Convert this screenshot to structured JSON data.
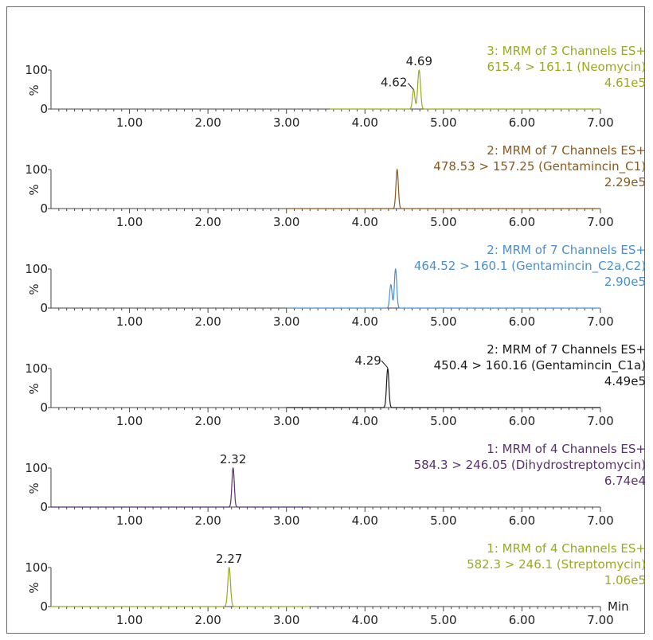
{
  "x_unit_label": "Min",
  "chart_data": [
    {
      "type": "line",
      "title_lines": [
        "3: MRM of 3 Channels ES+",
        "615.4 > 161.1 (Neomycin)",
        "4.61e5"
      ],
      "color": "#9aaa1f",
      "xlim": [
        0.0,
        7.0
      ],
      "xticks": [
        "1.00",
        "2.00",
        "3.00",
        "4.00",
        "5.00",
        "6.00",
        "7.00"
      ],
      "ylim": [
        0,
        100
      ],
      "ytick_top": "100",
      "ytick_bottom": "0",
      "ylabel": "%",
      "baseline_x": [
        3.55,
        7.0
      ],
      "peaks": [
        {
          "rt": 4.62,
          "height": 50,
          "width": 0.03,
          "label": "4.62"
        },
        {
          "rt": 4.69,
          "height": 100,
          "width": 0.035,
          "label": "4.69"
        }
      ]
    },
    {
      "type": "line",
      "title_lines": [
        "2: MRM of 7 Channels ES+",
        "478.53 > 157.25 (Gentamincin_C1)",
        "2.29e5"
      ],
      "color": "#8a5a1c",
      "xlim": [
        0.0,
        7.0
      ],
      "xticks": [
        "1.00",
        "2.00",
        "3.00",
        "4.00",
        "5.00",
        "6.00",
        "7.00"
      ],
      "ylim": [
        0,
        100
      ],
      "ytick_top": "100",
      "ytick_bottom": "0",
      "ylabel": "%",
      "baseline_x": [
        3.0,
        7.0
      ],
      "peaks": [
        {
          "rt": 4.41,
          "height": 100,
          "width": 0.03,
          "label": ""
        }
      ]
    },
    {
      "type": "line",
      "title_lines": [
        "2: MRM of 7 Channels ES+",
        "464.52 > 160.1 (Gentamincin_C2a,C2)",
        "2.90e5"
      ],
      "color": "#4a8fd0",
      "xlim": [
        0.0,
        7.0
      ],
      "xticks": [
        "1.00",
        "2.00",
        "3.00",
        "4.00",
        "5.00",
        "6.00",
        "7.00"
      ],
      "ylim": [
        0,
        100
      ],
      "ytick_top": "100",
      "ytick_bottom": "0",
      "ylabel": "%",
      "baseline_x": [
        3.0,
        7.0
      ],
      "peaks": [
        {
          "rt": 4.33,
          "height": 60,
          "width": 0.03,
          "label": ""
        },
        {
          "rt": 4.39,
          "height": 100,
          "width": 0.03,
          "label": ""
        }
      ]
    },
    {
      "type": "line",
      "title_lines": [
        "2: MRM of 7 Channels ES+",
        "450.4 > 160.16 (Gentamincin_C1a)",
        "4.49e5"
      ],
      "color": "#1a1a1a",
      "xlim": [
        0.0,
        7.0
      ],
      "xticks": [
        "1.00",
        "2.00",
        "3.00",
        "4.00",
        "5.00",
        "6.00",
        "7.00"
      ],
      "ylim": [
        0,
        100
      ],
      "ytick_top": "100",
      "ytick_bottom": "0",
      "ylabel": "%",
      "baseline_x": [
        3.0,
        7.0
      ],
      "peaks": [
        {
          "rt": 4.29,
          "height": 100,
          "width": 0.03,
          "label": "4.29"
        }
      ]
    },
    {
      "type": "line",
      "title_lines": [
        "1: MRM of 4 Channels ES+",
        "584.3 > 246.05 (Dihydrostreptomycin)",
        "6.74e4"
      ],
      "color": "#5a3070",
      "xlim": [
        0.0,
        7.0
      ],
      "xticks": [
        "1.00",
        "2.00",
        "3.00",
        "4.00",
        "5.00",
        "6.00",
        "7.00"
      ],
      "ylim": [
        0,
        100
      ],
      "ytick_top": "100",
      "ytick_bottom": "0",
      "ylabel": "%",
      "baseline_x": [
        0.0,
        3.3
      ],
      "peaks": [
        {
          "rt": 2.32,
          "height": 100,
          "width": 0.03,
          "label": "2.32"
        }
      ]
    },
    {
      "type": "line",
      "title_lines": [
        "1: MRM of 4 Channels ES+",
        "582.3 > 246.1 (Streptomycin)",
        "1.06e5"
      ],
      "color": "#9aaa1f",
      "xlim": [
        0.0,
        7.0
      ],
      "xticks": [
        "1.00",
        "2.00",
        "3.00",
        "4.00",
        "5.00",
        "6.00",
        "7.00"
      ],
      "ylim": [
        0,
        100
      ],
      "ytick_top": "100",
      "ytick_bottom": "0",
      "ylabel": "%",
      "baseline_x": [
        0.0,
        3.3
      ],
      "peaks": [
        {
          "rt": 2.27,
          "height": 100,
          "width": 0.035,
          "label": "2.27"
        }
      ]
    }
  ]
}
